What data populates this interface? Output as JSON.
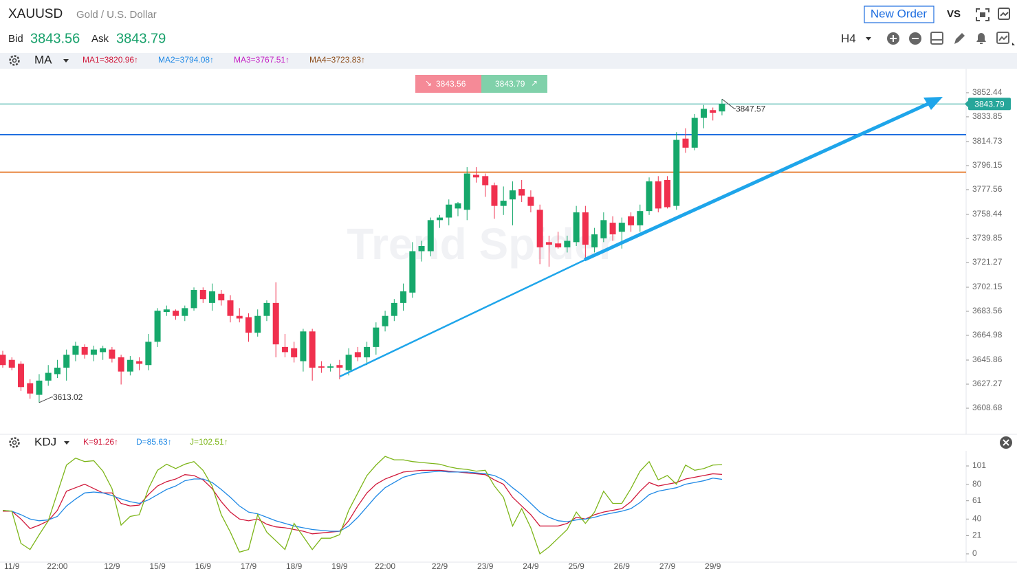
{
  "header": {
    "symbol": "XAUUSD",
    "name": "Gold / U.S. Dollar",
    "new_order": "New Order",
    "vs": "VS"
  },
  "quote": {
    "bid_label": "Bid",
    "bid": "3843.56",
    "ask_label": "Ask",
    "ask": "3843.79",
    "timeframe": "H4"
  },
  "ma_bar": {
    "name": "MA",
    "items": [
      {
        "text": "MA1=3820.96↑",
        "color": "#d0183a"
      },
      {
        "text": "MA2=3794.08↑",
        "color": "#1e88e5"
      },
      {
        "text": "MA3=3767.51↑",
        "color": "#c41fc4"
      },
      {
        "text": "MA4=3723.83↑",
        "color": "#8b4a17"
      }
    ]
  },
  "kdj_bar": {
    "name": "KDJ"
  },
  "watermark": "Trend Spider",
  "chart_data": [
    {
      "type": "candlestick",
      "categories": [
        null,
        "11/9",
        null,
        null,
        null,
        null,
        "22:00",
        null,
        null,
        null,
        null,
        null,
        "12/9",
        null,
        null,
        null,
        null,
        "15/9",
        null,
        null,
        null,
        null,
        "16/9",
        null,
        null,
        null,
        null,
        "17/9",
        null,
        null,
        null,
        null,
        "18/9",
        null,
        null,
        null,
        null,
        "19/9",
        null,
        null,
        null,
        null,
        "22:00",
        null,
        null,
        null,
        null,
        null,
        "22/9",
        null,
        null,
        null,
        null,
        "23/9",
        null,
        null,
        null,
        null,
        "24/9",
        null,
        null,
        null,
        null,
        "25/9",
        null,
        null,
        null,
        null,
        "26/9",
        null,
        null,
        null,
        null,
        "27/9",
        null,
        null,
        null,
        null,
        "29/9",
        null
      ],
      "open": [
        3650,
        3646,
        3643,
        3628,
        3619,
        3630,
        3635,
        3640,
        3650,
        3656,
        3650,
        3652,
        3654,
        3648,
        3637,
        3645,
        3642,
        3660,
        3683,
        3684,
        3680,
        3686,
        3700,
        3690,
        3697,
        3692,
        3680,
        3679,
        3667,
        3680,
        3690,
        3656,
        3655,
        3645,
        3668,
        3641,
        3640,
        3642,
        3638,
        3652,
        3648,
        3656,
        3672,
        3680,
        3690,
        3698,
        3730,
        3730,
        3754,
        3756,
        3763,
        3762,
        3789,
        3788,
        3781,
        3765,
        3770,
        3778,
        3772,
        3762,
        3737,
        3736,
        3733,
        3737,
        3760,
        3733,
        3740,
        3752,
        3745,
        3757,
        3750,
        3761,
        3784,
        3785,
        3765,
        3817,
        3810,
        3833,
        3839,
        3838
      ],
      "high": [
        3653,
        3648,
        3645,
        3631,
        3635,
        3642,
        3646,
        3654,
        3660,
        3658,
        3657,
        3657,
        3656,
        3650,
        3649,
        3648,
        3666,
        3686,
        3688,
        3685,
        3688,
        3702,
        3702,
        3705,
        3700,
        3696,
        3686,
        3682,
        3685,
        3692,
        3706,
        3666,
        3660,
        3670,
        3670,
        3645,
        3643,
        3646,
        3655,
        3656,
        3660,
        3675,
        3684,
        3693,
        3705,
        3737,
        3738,
        3756,
        3758,
        3770,
        3768,
        3795,
        3795,
        3790,
        3783,
        3780,
        3784,
        3785,
        3777,
        3766,
        3742,
        3745,
        3742,
        3765,
        3765,
        3748,
        3760,
        3757,
        3756,
        3760,
        3766,
        3787,
        3788,
        3788,
        3822,
        3825,
        3836,
        3843,
        3841,
        3847.57
      ],
      "low": [
        3640,
        3638,
        3622,
        3616,
        3613.02,
        3626,
        3632,
        3630,
        3645,
        3647,
        3645,
        3646,
        3644,
        3627,
        3634,
        3638,
        3638,
        3656,
        3680,
        3677,
        3676,
        3684,
        3690,
        3684,
        3688,
        3675,
        3675,
        3660,
        3664,
        3676,
        3648,
        3648,
        3644,
        3637,
        3630,
        3636,
        3637,
        3631,
        3634,
        3645,
        3642,
        3650,
        3668,
        3676,
        3684,
        3694,
        3722,
        3726,
        3748,
        3750,
        3757,
        3754,
        3783,
        3772,
        3755,
        3758,
        3750,
        3768,
        3760,
        3720,
        3718,
        3732,
        3729,
        3734,
        3723,
        3729,
        3737,
        3738,
        3732,
        3745,
        3745,
        3758,
        3760,
        3763,
        3762,
        3806,
        3808,
        3825,
        3831,
        3835
      ],
      "close": [
        3642,
        3640,
        3625,
        3620,
        3630,
        3636,
        3640,
        3650,
        3657,
        3650,
        3654,
        3655,
        3647,
        3637,
        3646,
        3643,
        3660,
        3684,
        3685,
        3680,
        3686,
        3700,
        3693,
        3699,
        3692,
        3680,
        3678,
        3667,
        3680,
        3690,
        3658,
        3652,
        3648,
        3668,
        3640,
        3640,
        3641,
        3640,
        3650,
        3648,
        3656,
        3671,
        3680,
        3690,
        3699,
        3730,
        3734,
        3754,
        3756,
        3766,
        3767,
        3790,
        3787,
        3781,
        3765,
        3769,
        3777,
        3773,
        3765,
        3733,
        3735,
        3733,
        3738,
        3760,
        3735,
        3743,
        3754,
        3743,
        3752,
        3750,
        3761,
        3784,
        3763,
        3764,
        3816,
        3810,
        3833,
        3840,
        3837,
        3843.79
      ],
      "up_color": "#16a86b",
      "down_color": "#f0304e",
      "levels": [
        {
          "value": 3820,
          "color": "#1e6ee0"
        },
        {
          "value": 3791,
          "color": "#e8843c"
        }
      ],
      "last_price_color": "#26a69a",
      "ylim": [
        3588.5,
        3871.0
      ],
      "yticks": [
        3608.68,
        3627.27,
        3645.86,
        3664.98,
        3683.56,
        3702.15,
        3721.27,
        3739.85,
        3758.44,
        3777.56,
        3796.15,
        3814.73,
        3833.85,
        3852.44
      ]
    },
    {
      "type": "line",
      "series": [
        {
          "name": "K=91.26↑",
          "color": "#d0183a",
          "values": [
            49,
            49,
            40,
            29,
            33,
            38,
            50,
            72,
            76,
            80,
            75,
            70,
            70,
            58,
            55,
            56,
            68,
            78,
            83,
            86,
            91,
            90,
            85,
            75,
            60,
            48,
            40,
            38,
            40,
            34,
            31,
            30,
            28,
            26,
            23,
            24,
            25,
            26,
            38,
            55,
            70,
            80,
            86,
            90,
            94,
            95,
            96,
            96,
            96,
            95,
            94,
            93,
            92,
            91,
            85,
            80,
            65,
            55,
            45,
            32,
            32,
            32,
            35,
            42,
            40,
            45,
            48,
            50,
            52,
            60,
            72,
            82,
            78,
            80,
            82,
            86,
            88,
            90,
            92,
            91.26
          ]
        },
        {
          "name": "D=85.63↑",
          "color": "#1e88e5",
          "values": [
            50,
            49,
            45,
            40,
            38,
            39,
            43,
            55,
            63,
            70,
            71,
            70,
            67,
            63,
            60,
            58,
            62,
            68,
            74,
            78,
            84,
            86,
            86,
            82,
            74,
            65,
            55,
            48,
            46,
            42,
            38,
            35,
            32,
            30,
            28,
            27,
            26,
            26,
            32,
            42,
            54,
            66,
            76,
            82,
            88,
            91,
            93,
            94,
            95,
            94,
            94,
            94,
            93,
            92,
            90,
            85,
            76,
            68,
            58,
            48,
            42,
            38,
            37,
            39,
            40,
            42,
            45,
            47,
            49,
            52,
            59,
            68,
            72,
            74,
            76,
            80,
            82,
            84,
            87,
            85.63
          ]
        },
        {
          "name": "J=102.51↑",
          "color": "#7cb518",
          "values": [
            50,
            49,
            12,
            5,
            22,
            38,
            70,
            102,
            110,
            106,
            107,
            95,
            75,
            33,
            43,
            45,
            75,
            96,
            103,
            98,
            103,
            106,
            96,
            78,
            45,
            25,
            2,
            5,
            45,
            25,
            15,
            5,
            35,
            20,
            5,
            18,
            18,
            22,
            50,
            70,
            90,
            102,
            112,
            108,
            108,
            106,
            105,
            104,
            103,
            100,
            98,
            97,
            95,
            96,
            78,
            65,
            32,
            52,
            30,
            0,
            8,
            18,
            28,
            48,
            35,
            48,
            72,
            58,
            58,
            75,
            95,
            106,
            85,
            90,
            80,
            102,
            96,
            98,
            102,
            102.51
          ]
        }
      ],
      "ylim": [
        -9.5,
        117.6
      ],
      "yticks": [
        0,
        21,
        40,
        61,
        80,
        101
      ]
    }
  ]
}
